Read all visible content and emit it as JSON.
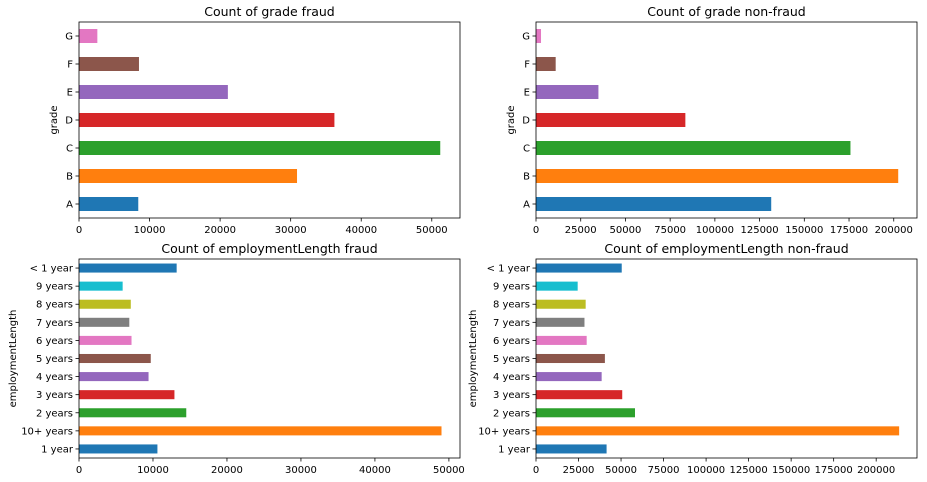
{
  "colors": {
    "blue": "#1f77b4",
    "orange": "#ff7f0e",
    "green": "#2ca02c",
    "red": "#d62728",
    "purple": "#9467bd",
    "brown": "#8c564b",
    "pink": "#e377c2",
    "gray": "#7f7f7f",
    "olive": "#bcbd22",
    "cyan": "#17becf"
  },
  "chart_data": [
    {
      "type": "bar",
      "orientation": "horizontal",
      "title": "Count of grade fraud",
      "xlabel": "",
      "ylabel": "grade",
      "categories": [
        "A",
        "B",
        "C",
        "D",
        "E",
        "F",
        "G"
      ],
      "values": [
        8400,
        30900,
        51200,
        36200,
        21100,
        8500,
        2600
      ],
      "xlim": [
        0,
        54000
      ],
      "xticks": [
        0,
        10000,
        20000,
        30000,
        40000,
        50000
      ],
      "xtick_labels": [
        "0",
        "10000",
        "20000",
        "30000",
        "40000",
        "50000"
      ],
      "grid": false
    },
    {
      "type": "bar",
      "orientation": "horizontal",
      "title": "Count of grade non-fraud",
      "xlabel": "",
      "ylabel": "grade",
      "categories": [
        "A",
        "B",
        "C",
        "D",
        "E",
        "F",
        "G"
      ],
      "values": [
        131500,
        202500,
        175800,
        83500,
        34900,
        11000,
        2800
      ],
      "xlim": [
        0,
        213000
      ],
      "xticks": [
        0,
        25000,
        50000,
        75000,
        100000,
        125000,
        150000,
        175000,
        200000
      ],
      "xtick_labels": [
        "0",
        "25000",
        "50000",
        "75000",
        "100000",
        "125000",
        "150000",
        "175000",
        "200000"
      ],
      "grid": false
    },
    {
      "type": "bar",
      "orientation": "horizontal",
      "title": "Count of employmentLength fraud",
      "xlabel": "",
      "ylabel": "employmentLength",
      "categories": [
        "1 year",
        "10+ years",
        "2 years",
        "3 years",
        "4 years",
        "5 years",
        "6 years",
        "7 years",
        "8 years",
        "9 years",
        "< 1 year"
      ],
      "values": [
        10600,
        49000,
        14500,
        12900,
        9400,
        9700,
        7100,
        6800,
        7000,
        5900,
        13200
      ],
      "xlim": [
        0,
        51500
      ],
      "xticks": [
        0,
        10000,
        20000,
        30000,
        40000,
        50000
      ],
      "xtick_labels": [
        "0",
        "10000",
        "20000",
        "30000",
        "40000",
        "50000"
      ],
      "grid": false
    },
    {
      "type": "bar",
      "orientation": "horizontal",
      "title": "Count of employmentLength non-fraud",
      "xlabel": "",
      "ylabel": "employmentLength",
      "categories": [
        "1 year",
        "10+ years",
        "2 years",
        "3 years",
        "4 years",
        "5 years",
        "6 years",
        "7 years",
        "8 years",
        "9 years",
        "< 1 year"
      ],
      "values": [
        41500,
        213500,
        58200,
        50700,
        38600,
        40500,
        29800,
        28500,
        29200,
        24500,
        50400
      ],
      "xlim": [
        0,
        224000
      ],
      "xticks": [
        0,
        25000,
        50000,
        75000,
        100000,
        125000,
        150000,
        175000,
        200000
      ],
      "xtick_labels": [
        "0",
        "25000",
        "50000",
        "75000",
        "100000",
        "125000",
        "150000",
        "175000",
        "200000"
      ],
      "grid": false
    }
  ]
}
